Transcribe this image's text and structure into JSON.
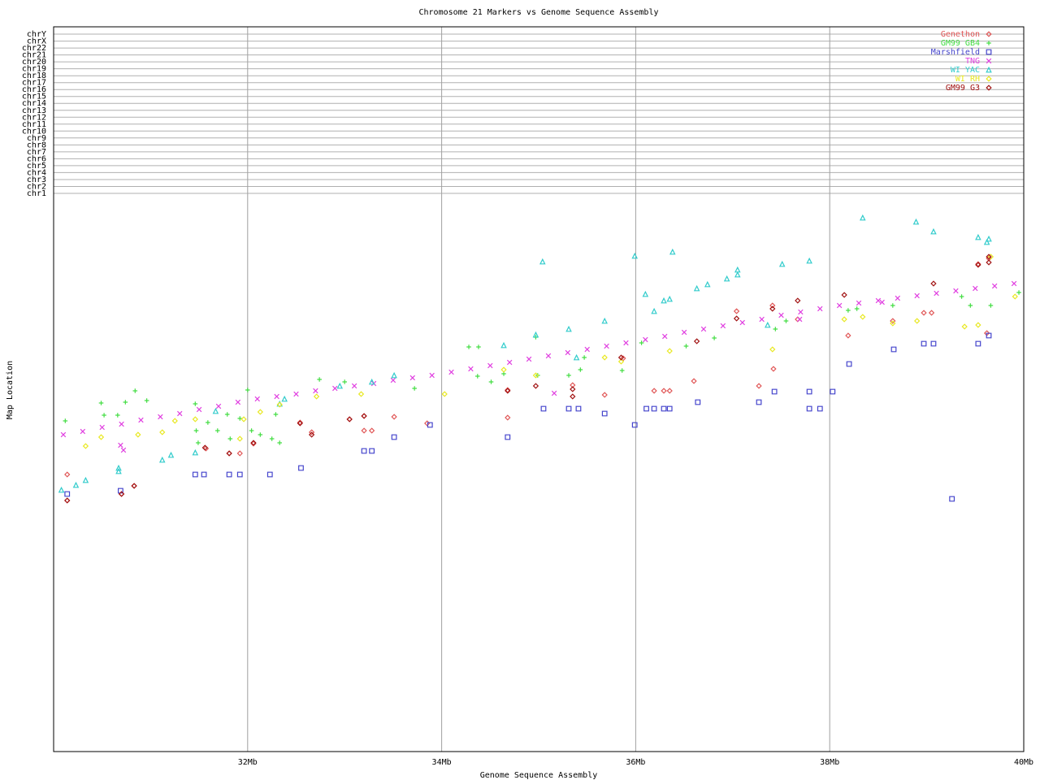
{
  "chart_data": {
    "type": "scatter",
    "title": "Chromosome 21 Markers vs Genome Sequence Assembly",
    "xlabel": "Genome Sequence Assembly",
    "ylabel": "Map Location",
    "xlim": [
      30,
      40
    ],
    "xticks": [
      {
        "value": 32,
        "label": "32Mb"
      },
      {
        "value": 34,
        "label": "34Mb"
      },
      {
        "value": 36,
        "label": "36Mb"
      },
      {
        "value": 38,
        "label": "38Mb"
      },
      {
        "value": 40,
        "label": "40Mb"
      }
    ],
    "ylim": [
      0,
      892
    ],
    "yticks": [
      {
        "value": 687,
        "label": "chr1"
      },
      {
        "value": 695.5,
        "label": "chr2"
      },
      {
        "value": 704,
        "label": "chr3"
      },
      {
        "value": 712.6,
        "label": "chr4"
      },
      {
        "value": 721.1,
        "label": "chr5"
      },
      {
        "value": 729.6,
        "label": "chr6"
      },
      {
        "value": 738.1,
        "label": "chr7"
      },
      {
        "value": 746.6,
        "label": "chr8"
      },
      {
        "value": 755.2,
        "label": "chr9"
      },
      {
        "value": 763.7,
        "label": "chr10"
      },
      {
        "value": 772.2,
        "label": "chr11"
      },
      {
        "value": 780.7,
        "label": "chr12"
      },
      {
        "value": 789.2,
        "label": "chr13"
      },
      {
        "value": 797.8,
        "label": "chr14"
      },
      {
        "value": 806.3,
        "label": "chr15"
      },
      {
        "value": 814.8,
        "label": "chr16"
      },
      {
        "value": 823.3,
        "label": "chr17"
      },
      {
        "value": 831.8,
        "label": "chr18"
      },
      {
        "value": 840.4,
        "label": "chr19"
      },
      {
        "value": 848.9,
        "label": "chr20"
      },
      {
        "value": 857.4,
        "label": "chr21"
      },
      {
        "value": 865.9,
        "label": "chr22"
      },
      {
        "value": 874.4,
        "label": "chrX"
      },
      {
        "value": 883,
        "label": "chrY"
      }
    ],
    "grid": true,
    "legend": "upper right",
    "series": [
      {
        "name": "Genethon",
        "color": "#e05555",
        "marker": "diamond",
        "x": [
          30.14,
          30.14,
          30.83,
          30.7,
          31.57,
          31.81,
          31.92,
          32.06,
          32.54,
          32.66,
          33.05,
          33.2,
          33.2,
          33.28,
          33.51,
          33.85,
          34.68,
          34.68,
          35.35,
          35.68,
          36.19,
          36.29,
          36.35,
          36.6,
          37.27,
          37.42,
          38.19,
          38.65,
          38.97,
          39.05,
          39.62,
          39.53,
          39.64,
          37.04,
          37.41,
          35.87,
          37.67
        ],
        "values": [
          341,
          309,
          327,
          317,
          373,
          367,
          367,
          379,
          405,
          393,
          409,
          413,
          395,
          395,
          412,
          404,
          411,
          445,
          451,
          439,
          444,
          444,
          444,
          456,
          450,
          471,
          512,
          530,
          540,
          540,
          515,
          600,
          607,
          542,
          549,
          484,
          532
        ]
      },
      {
        "name": "GM99 GB4",
        "color": "#44dd44",
        "marker": "plus",
        "x": [
          30.12,
          30.49,
          30.52,
          30.66,
          30.74,
          30.84,
          30.96,
          31.46,
          31.47,
          31.49,
          31.59,
          31.69,
          31.79,
          31.82,
          31.92,
          32.0,
          32.04,
          32.13,
          32.25,
          32.33,
          32.29,
          32.74,
          33.0,
          33.72,
          34.28,
          34.38,
          34.37,
          34.51,
          34.64,
          34.97,
          34.99,
          35.31,
          35.43,
          35.47,
          35.86,
          36.06,
          36.52,
          36.81,
          37.44,
          37.55,
          38.19,
          38.28,
          38.65,
          39.36,
          39.45,
          39.66,
          39.95
        ],
        "values": [
          407,
          429,
          414,
          414,
          430,
          444,
          432,
          428,
          395,
          380,
          405,
          395,
          415,
          385,
          410,
          445,
          395,
          390,
          385,
          380,
          415,
          458,
          455,
          447,
          498,
          498,
          462,
          455,
          465,
          510,
          463,
          463,
          470,
          485,
          469,
          503,
          499,
          509,
          520,
          530,
          543,
          545,
          549,
          560,
          549,
          549,
          565
        ]
      },
      {
        "name": "Marshfield",
        "color": "#4444cc",
        "marker": "square",
        "x": [
          30.14,
          30.69,
          31.46,
          31.55,
          31.81,
          31.92,
          32.23,
          32.55,
          33.2,
          33.28,
          33.51,
          33.88,
          34.68,
          35.05,
          35.31,
          35.41,
          35.68,
          35.99,
          36.11,
          36.19,
          36.29,
          36.35,
          36.64,
          37.27,
          37.43,
          37.79,
          37.79,
          37.9,
          38.03,
          38.2,
          38.66,
          38.97,
          39.07,
          39.26,
          39.53,
          39.64
        ],
        "values": [
          317,
          321,
          341,
          341,
          341,
          341,
          341,
          349,
          370,
          370,
          387,
          402,
          387,
          422,
          422,
          422,
          416,
          402,
          422,
          422,
          422,
          422,
          430,
          430,
          443,
          443,
          422,
          422,
          443,
          477,
          495,
          502,
          502,
          311,
          502,
          512
        ]
      },
      {
        "name": "TNG",
        "color": "#e040e0",
        "marker": "cross",
        "x": [
          30.1,
          30.3,
          30.5,
          30.7,
          30.9,
          31.1,
          31.3,
          31.5,
          31.7,
          31.9,
          32.1,
          32.3,
          32.5,
          32.7,
          32.9,
          33.1,
          33.3,
          33.5,
          33.7,
          33.9,
          34.1,
          34.3,
          34.5,
          34.7,
          34.9,
          35.1,
          35.3,
          35.5,
          35.7,
          35.9,
          36.1,
          36.3,
          36.5,
          36.7,
          36.9,
          37.1,
          37.3,
          37.5,
          37.7,
          37.9,
          38.1,
          38.3,
          38.5,
          38.7,
          38.9,
          39.1,
          39.3,
          39.5,
          39.7,
          39.9,
          30.69,
          30.72,
          35.16,
          37.69,
          38.54
        ],
        "values": [
          390,
          394,
          399,
          403,
          408,
          412,
          416,
          421,
          425,
          430,
          434,
          437,
          440,
          444,
          447,
          450,
          453,
          457,
          460,
          463,
          467,
          471,
          475,
          479,
          483,
          487,
          491,
          495,
          499,
          503,
          507,
          511,
          516,
          520,
          524,
          528,
          532,
          537,
          541,
          545,
          549,
          552,
          555,
          558,
          561,
          564,
          567,
          570,
          573,
          576,
          377,
          371,
          441,
          532,
          553
        ]
      },
      {
        "name": "WI YAC",
        "color": "#33cccc",
        "marker": "triangle",
        "x": [
          30.08,
          30.23,
          30.33,
          30.67,
          30.67,
          31.12,
          31.21,
          31.46,
          31.67,
          32.33,
          32.38,
          32.95,
          33.28,
          33.51,
          34.64,
          34.97,
          35.04,
          35.31,
          35.39,
          35.68,
          35.99,
          36.1,
          36.19,
          36.29,
          36.35,
          36.38,
          36.63,
          36.74,
          36.94,
          37.05,
          37.05,
          37.36,
          37.51,
          37.79,
          38.34,
          38.89,
          39.07,
          39.53,
          39.62,
          39.64
        ],
        "values": [
          322,
          328,
          334,
          349,
          345,
          359,
          365,
          368,
          419,
          428,
          434,
          450,
          455,
          463,
          500,
          513,
          603,
          520,
          485,
          530,
          610,
          563,
          542,
          555,
          557,
          615,
          570,
          575,
          582,
          587,
          593,
          525,
          600,
          604,
          657,
          652,
          640,
          633,
          627,
          631
        ]
      },
      {
        "name": "WI RH",
        "color": "#e8e820",
        "marker": "diamond",
        "x": [
          30.33,
          30.49,
          30.87,
          31.12,
          31.25,
          31.46,
          31.96,
          32.13,
          32.33,
          32.71,
          33.17,
          34.03,
          34.64,
          34.97,
          35.68,
          35.85,
          36.35,
          37.41,
          38.15,
          38.34,
          38.65,
          38.9,
          39.39,
          39.53,
          39.66,
          39.91,
          31.92
        ],
        "values": [
          376,
          387,
          390,
          393,
          407,
          409,
          409,
          418,
          427,
          437,
          440,
          440,
          470,
          463,
          485,
          480,
          493,
          495,
          532,
          535,
          527,
          530,
          523,
          525,
          609,
          560,
          385
        ]
      },
      {
        "name": "GM99 G3",
        "color": "#a01010",
        "marker": "diamond",
        "x": [
          30.14,
          30.7,
          30.83,
          31.56,
          31.81,
          32.06,
          32.54,
          32.66,
          33.05,
          33.2,
          34.68,
          34.97,
          35.35,
          35.35,
          35.85,
          36.63,
          37.04,
          37.41,
          37.67,
          38.15,
          39.07,
          39.53,
          39.64,
          39.64
        ],
        "values": [
          309,
          317,
          327,
          374,
          367,
          380,
          404,
          390,
          409,
          413,
          444,
          450,
          446,
          437,
          485,
          505,
          533,
          545,
          555,
          562,
          576,
          599,
          602,
          609
        ]
      }
    ]
  }
}
